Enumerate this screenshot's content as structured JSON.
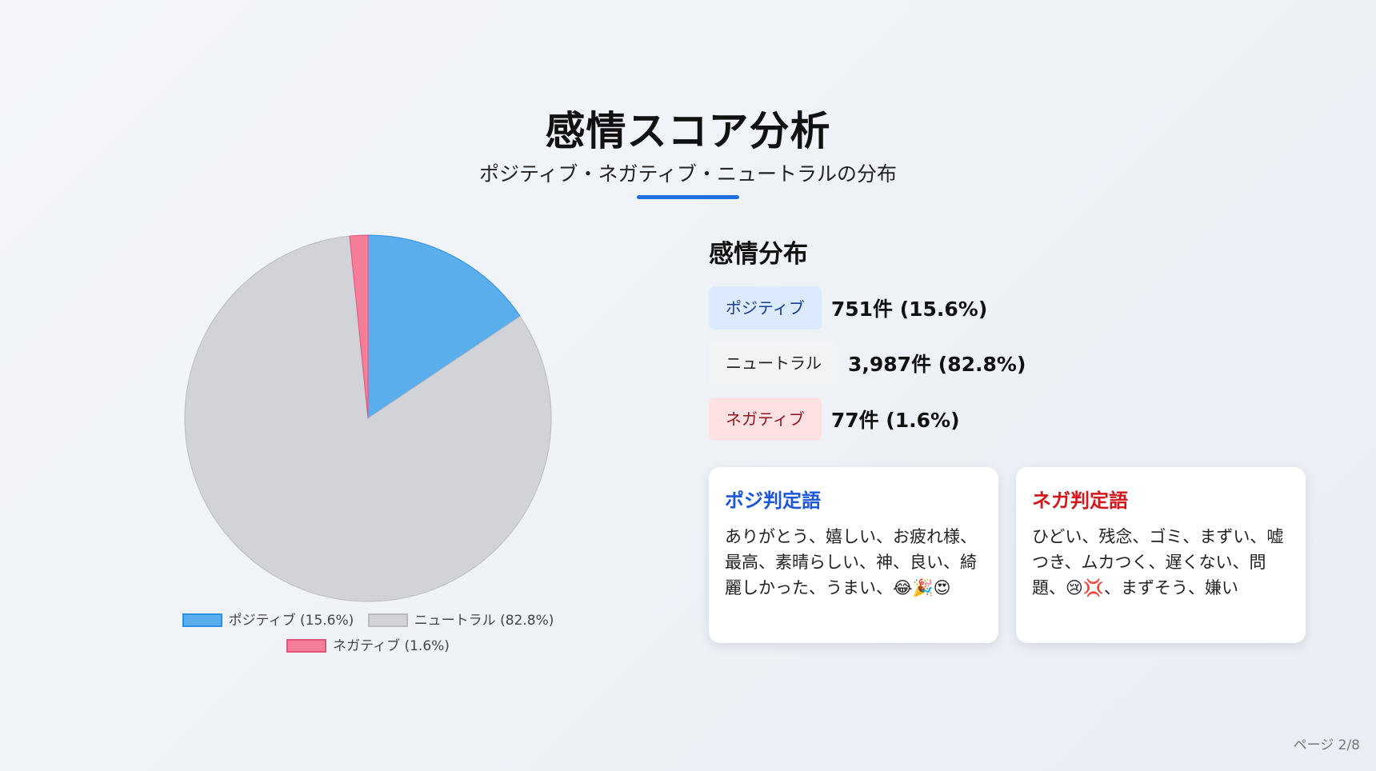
{
  "title": "感情スコア分析",
  "subtitle": "ポジティブ・ネガティブ・ニュートラルの分布",
  "chart_data": {
    "type": "pie",
    "categories": [
      "ポジティブ",
      "ニュートラル",
      "ネガティブ"
    ],
    "values": [
      15.6,
      82.8,
      1.6
    ],
    "legend_labels": [
      "ポジティブ (15.6%)",
      "ニュートラル (82.8%)",
      "ネガティブ (1.6%)"
    ],
    "colors": [
      "#5aaeec",
      "#d1d3d8",
      "#f47e98"
    ],
    "stroke_colors": [
      "#2f8fe0",
      "#b9bbc0",
      "#e0557a"
    ],
    "legend_placement": "bottom"
  },
  "distribution": {
    "heading": "感情分布",
    "rows": [
      {
        "label": "ポジティブ",
        "value": "751件 (15.6%)",
        "bg": "#dbeafc",
        "fg": "#1a3c8f"
      },
      {
        "label": "ニュートラル",
        "value": "3,987件 (82.8%)",
        "bg": "#f2f3f5",
        "fg": "#222222"
      },
      {
        "label": "ネガティブ",
        "value": "77件 (1.6%)",
        "bg": "#fde1e3",
        "fg": "#8f1a23"
      }
    ]
  },
  "cards": {
    "positive": {
      "title": "ポジ判定語",
      "words": "ありがとう、嬉しい、お疲れ様、最高、素晴らしい、神、良い、綺麗しかった、うまい、😂🎉😍",
      "color": "#1e56d8"
    },
    "negative": {
      "title": "ネガ判定語",
      "words": "ひどい、残念、ゴミ、まずい、嘘つき、ムカつく、遅くない、問題、😢💢、まずそう、嫌い",
      "color": "#d3171d"
    }
  },
  "page_indicator": "ページ 2/8"
}
